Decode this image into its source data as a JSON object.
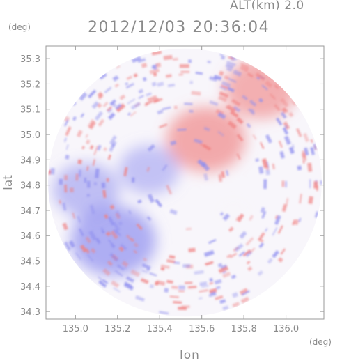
{
  "header": {
    "altitude_label": "ALT(km) 2.0",
    "timestamp": "2012/12/03 20:36:04"
  },
  "axes": {
    "x_unit": "(deg)",
    "y_unit": "(deg)",
    "xlabel": "lon",
    "ylabel": "lat"
  },
  "colors": {
    "positive": "#f08080",
    "negative": "#8f8fef",
    "neutral": "#f8f6fb",
    "axis": "#9a9a9a"
  },
  "chart_data": {
    "type": "heatmap",
    "title": "2012/12/03 20:36:04",
    "subtitle": "ALT(km) 2.0",
    "xlabel": "lon",
    "ylabel": "lat",
    "x_unit": "(deg)",
    "y_unit": "(deg)",
    "xlim": [
      134.86,
      136.18
    ],
    "ylim": [
      34.27,
      35.35
    ],
    "x_ticks": [
      135.0,
      135.2,
      135.4,
      135.6,
      135.8,
      136.0
    ],
    "x_tick_labels": [
      "135.0",
      "135.2",
      "135.4",
      "135.6",
      "135.8",
      "136.0"
    ],
    "y_ticks": [
      34.3,
      34.4,
      34.5,
      34.6,
      34.7,
      34.8,
      34.9,
      35.0,
      35.1,
      35.2,
      35.3
    ],
    "y_tick_labels": [
      "34.3",
      "34.4",
      "34.5",
      "34.6",
      "34.7",
      "34.8",
      "34.9",
      "35.0",
      "35.1",
      "35.2",
      "35.3"
    ],
    "radar_center": {
      "lon": 135.52,
      "lat": 34.81
    },
    "radar_range_deg": {
      "lon": 0.65,
      "lat": 0.53
    },
    "colormap": "diverging blue-white-red",
    "regions": [
      {
        "label": "positive",
        "lon": 135.62,
        "lat": 34.98,
        "value": 0.6
      },
      {
        "label": "positive",
        "lon": 135.88,
        "lat": 35.18,
        "value": 0.5
      },
      {
        "label": "negative",
        "lon": 135.18,
        "lat": 34.58,
        "value": -0.7
      },
      {
        "label": "negative",
        "lon": 135.05,
        "lat": 34.78,
        "value": -0.4
      },
      {
        "label": "negative",
        "lon": 135.35,
        "lat": 34.86,
        "value": -0.3
      },
      {
        "label": "near-zero",
        "lon": 135.55,
        "lat": 34.45,
        "value": 0.05
      },
      {
        "label": "near-zero",
        "lon": 135.75,
        "lat": 34.7,
        "value": 0.1
      }
    ]
  }
}
